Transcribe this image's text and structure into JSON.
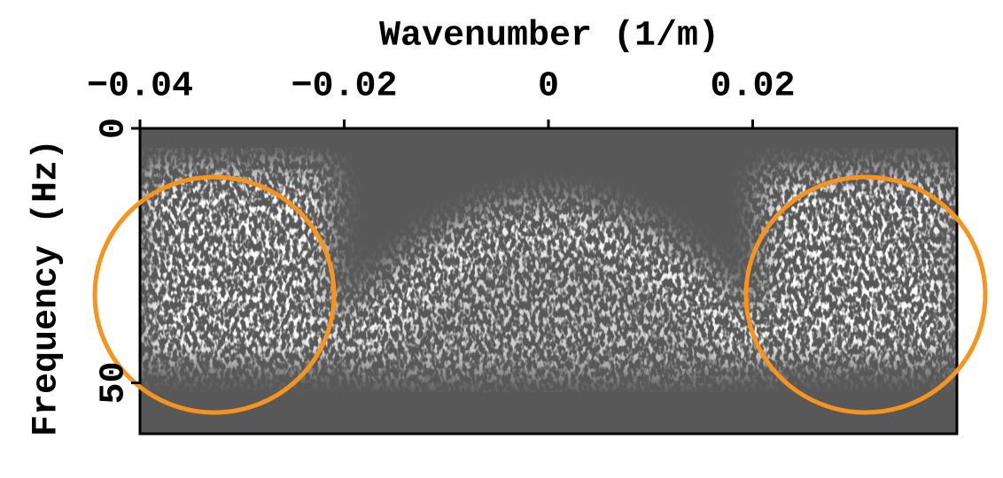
{
  "chart_data": {
    "type": "image",
    "xlabel": "Wavenumber (1/m)",
    "ylabel": "Frequency (Hz)",
    "xlim": [
      -0.04,
      0.04
    ],
    "ylim": [
      0,
      60
    ],
    "y_inverted": true,
    "xticks": [
      {
        "value": -0.04,
        "label": "−0.04"
      },
      {
        "value": -0.02,
        "label": "−0.02"
      },
      0,
      0.02
    ],
    "yticks": [
      0,
      50
    ]
  }
}
